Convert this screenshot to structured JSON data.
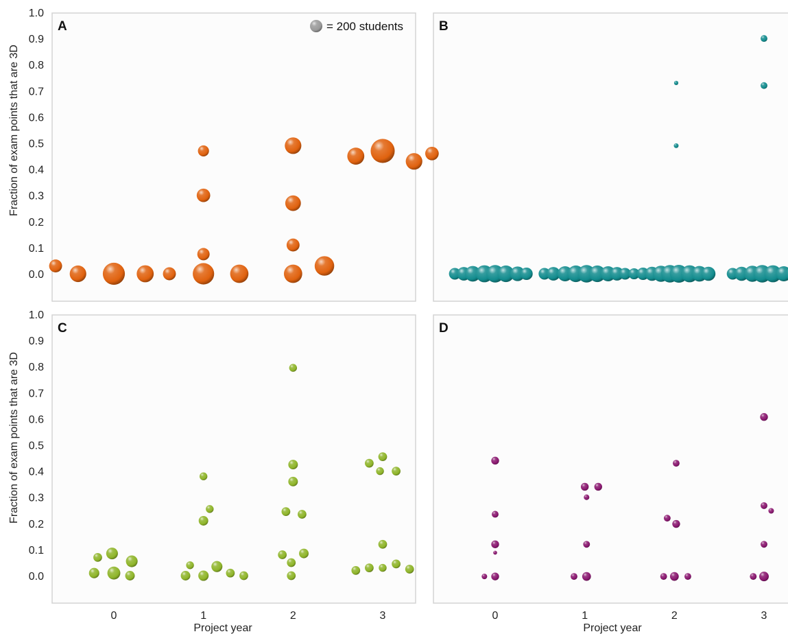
{
  "y_axis_label": "Fraction of exam points that are 3D",
  "x_axis_label": "Project year",
  "x_ticks": [
    "0",
    "1",
    "2",
    "3"
  ],
  "y_ticks": [
    "1.0",
    "0.9",
    "0.8",
    "0.7",
    "0.6",
    "0.5",
    "0.4",
    "0.3",
    "0.2",
    "0.1",
    "0.0"
  ],
  "legend": {
    "text": "= 200 students",
    "students": 200
  },
  "chart_data": [
    {
      "panel": "A",
      "type": "scatter",
      "color": "#e0620f",
      "xlim": [
        -0.7,
        3.7
      ],
      "ylim": [
        -0.1,
        1.0
      ],
      "points": [
        {
          "x": -0.65,
          "y": 0.03,
          "size": 1.1
        },
        {
          "x": -0.4,
          "y": 0.0,
          "size": 1.8
        },
        {
          "x": 0.0,
          "y": 0.0,
          "size": 3.2
        },
        {
          "x": 0.35,
          "y": 0.0,
          "size": 1.9
        },
        {
          "x": 0.62,
          "y": 0.0,
          "size": 1.1
        },
        {
          "x": 1.0,
          "y": 0.0,
          "size": 3.0
        },
        {
          "x": 1.4,
          "y": 0.0,
          "size": 2.2
        },
        {
          "x": 1.0,
          "y": 0.075,
          "size": 1.0
        },
        {
          "x": 1.0,
          "y": 0.3,
          "size": 1.2
        },
        {
          "x": 1.0,
          "y": 0.47,
          "size": 0.8
        },
        {
          "x": 2.0,
          "y": 0.0,
          "size": 2.2
        },
        {
          "x": 2.35,
          "y": 0.03,
          "size": 2.5
        },
        {
          "x": 2.0,
          "y": 0.11,
          "size": 1.1
        },
        {
          "x": 2.0,
          "y": 0.27,
          "size": 1.6
        },
        {
          "x": 2.0,
          "y": 0.49,
          "size": 1.8
        },
        {
          "x": 2.7,
          "y": 0.45,
          "size": 1.9
        },
        {
          "x": 3.0,
          "y": 0.47,
          "size": 3.8
        },
        {
          "x": 3.35,
          "y": 0.43,
          "size": 1.8
        },
        {
          "x": 3.55,
          "y": 0.46,
          "size": 1.2
        }
      ]
    },
    {
      "panel": "B",
      "type": "scatter",
      "color": "#138c8e",
      "xlim": [
        -0.7,
        3.7
      ],
      "ylim": [
        -0.1,
        1.0
      ],
      "points": [
        {
          "x": -0.45,
          "y": 0.0,
          "size": 0.9
        },
        {
          "x": -0.35,
          "y": 0.0,
          "size": 1.2
        },
        {
          "x": -0.25,
          "y": 0.0,
          "size": 1.6
        },
        {
          "x": -0.12,
          "y": 0.0,
          "size": 1.9
        },
        {
          "x": 0.0,
          "y": 0.0,
          "size": 2.0
        },
        {
          "x": 0.12,
          "y": 0.0,
          "size": 1.8
        },
        {
          "x": 0.25,
          "y": 0.0,
          "size": 1.4
        },
        {
          "x": 0.35,
          "y": 0.0,
          "size": 1.0
        },
        {
          "x": 0.55,
          "y": 0.0,
          "size": 0.9
        },
        {
          "x": 0.65,
          "y": 0.0,
          "size": 1.2
        },
        {
          "x": 0.78,
          "y": 0.0,
          "size": 1.5
        },
        {
          "x": 0.9,
          "y": 0.0,
          "size": 1.8
        },
        {
          "x": 1.02,
          "y": 0.0,
          "size": 2.0
        },
        {
          "x": 1.14,
          "y": 0.0,
          "size": 1.8
        },
        {
          "x": 1.26,
          "y": 0.0,
          "size": 1.5
        },
        {
          "x": 1.36,
          "y": 0.0,
          "size": 1.2
        },
        {
          "x": 1.45,
          "y": 0.0,
          "size": 0.9
        },
        {
          "x": 1.55,
          "y": 0.0,
          "size": 0.8
        },
        {
          "x": 1.65,
          "y": 0.0,
          "size": 1.0
        },
        {
          "x": 1.75,
          "y": 0.0,
          "size": 1.3
        },
        {
          "x": 1.85,
          "y": 0.0,
          "size": 1.7
        },
        {
          "x": 1.95,
          "y": 0.0,
          "size": 2.0
        },
        {
          "x": 2.05,
          "y": 0.0,
          "size": 2.1
        },
        {
          "x": 2.17,
          "y": 0.0,
          "size": 1.9
        },
        {
          "x": 2.28,
          "y": 0.0,
          "size": 1.6
        },
        {
          "x": 2.38,
          "y": 0.0,
          "size": 1.3
        },
        {
          "x": 2.65,
          "y": 0.0,
          "size": 0.9
        },
        {
          "x": 2.75,
          "y": 0.0,
          "size": 1.3
        },
        {
          "x": 2.87,
          "y": 0.0,
          "size": 1.7
        },
        {
          "x": 2.98,
          "y": 0.0,
          "size": 2.0
        },
        {
          "x": 3.1,
          "y": 0.0,
          "size": 1.9
        },
        {
          "x": 3.22,
          "y": 0.0,
          "size": 1.5
        },
        {
          "x": 3.32,
          "y": 0.0,
          "size": 1.2
        },
        {
          "x": 3.42,
          "y": 0.0,
          "size": 0.9
        },
        {
          "x": 2.02,
          "y": 0.49,
          "size": 0.15
        },
        {
          "x": 2.02,
          "y": 0.73,
          "size": 0.12
        },
        {
          "x": 3.0,
          "y": 0.72,
          "size": 0.3
        },
        {
          "x": 3.0,
          "y": 0.9,
          "size": 0.3
        }
      ]
    },
    {
      "panel": "C",
      "type": "scatter",
      "color": "#8fb52a",
      "xlim": [
        -0.7,
        3.7
      ],
      "ylim": [
        -0.1,
        1.0
      ],
      "points": [
        {
          "x": -0.22,
          "y": 0.01,
          "size": 0.7
        },
        {
          "x": -0.18,
          "y": 0.07,
          "size": 0.5
        },
        {
          "x": -0.02,
          "y": 0.085,
          "size": 0.9
        },
        {
          "x": 0.0,
          "y": 0.01,
          "size": 1.1
        },
        {
          "x": 0.2,
          "y": 0.055,
          "size": 0.9
        },
        {
          "x": 0.18,
          "y": 0.0,
          "size": 0.6
        },
        {
          "x": 0.8,
          "y": 0.0,
          "size": 0.6
        },
        {
          "x": 0.85,
          "y": 0.04,
          "size": 0.4
        },
        {
          "x": 1.0,
          "y": 0.0,
          "size": 0.7
        },
        {
          "x": 1.15,
          "y": 0.035,
          "size": 0.8
        },
        {
          "x": 1.3,
          "y": 0.01,
          "size": 0.5
        },
        {
          "x": 1.45,
          "y": 0.0,
          "size": 0.5
        },
        {
          "x": 1.0,
          "y": 0.21,
          "size": 0.6
        },
        {
          "x": 1.07,
          "y": 0.255,
          "size": 0.4
        },
        {
          "x": 1.0,
          "y": 0.38,
          "size": 0.4
        },
        {
          "x": 1.88,
          "y": 0.08,
          "size": 0.5
        },
        {
          "x": 1.98,
          "y": 0.05,
          "size": 0.5
        },
        {
          "x": 2.12,
          "y": 0.085,
          "size": 0.6
        },
        {
          "x": 1.98,
          "y": 0.0,
          "size": 0.5
        },
        {
          "x": 1.92,
          "y": 0.245,
          "size": 0.5
        },
        {
          "x": 2.1,
          "y": 0.235,
          "size": 0.5
        },
        {
          "x": 2.0,
          "y": 0.36,
          "size": 0.6
        },
        {
          "x": 2.0,
          "y": 0.425,
          "size": 0.6
        },
        {
          "x": 2.0,
          "y": 0.795,
          "size": 0.4
        },
        {
          "x": 2.7,
          "y": 0.02,
          "size": 0.5
        },
        {
          "x": 2.85,
          "y": 0.03,
          "size": 0.5
        },
        {
          "x": 3.0,
          "y": 0.03,
          "size": 0.4
        },
        {
          "x": 3.15,
          "y": 0.045,
          "size": 0.5
        },
        {
          "x": 3.3,
          "y": 0.025,
          "size": 0.5
        },
        {
          "x": 3.0,
          "y": 0.12,
          "size": 0.5
        },
        {
          "x": 2.85,
          "y": 0.43,
          "size": 0.5
        },
        {
          "x": 2.97,
          "y": 0.4,
          "size": 0.4
        },
        {
          "x": 3.0,
          "y": 0.455,
          "size": 0.5
        },
        {
          "x": 3.15,
          "y": 0.4,
          "size": 0.5
        }
      ]
    },
    {
      "panel": "D",
      "type": "scatter",
      "color": "#8a1870",
      "xlim": [
        -0.7,
        3.7
      ],
      "ylim": [
        -0.1,
        1.0
      ],
      "points": [
        {
          "x": -0.12,
          "y": -0.003,
          "size": 0.2
        },
        {
          "x": 0.0,
          "y": -0.003,
          "size": 0.4
        },
        {
          "x": 0.0,
          "y": 0.088,
          "size": 0.1
        },
        {
          "x": 0.0,
          "y": 0.12,
          "size": 0.4
        },
        {
          "x": 0.0,
          "y": 0.235,
          "size": 0.3
        },
        {
          "x": 0.0,
          "y": 0.44,
          "size": 0.4
        },
        {
          "x": 0.88,
          "y": -0.003,
          "size": 0.3
        },
        {
          "x": 1.02,
          "y": -0.003,
          "size": 0.5
        },
        {
          "x": 1.02,
          "y": 0.12,
          "size": 0.3
        },
        {
          "x": 1.02,
          "y": 0.3,
          "size": 0.2
        },
        {
          "x": 1.0,
          "y": 0.34,
          "size": 0.4
        },
        {
          "x": 1.15,
          "y": 0.34,
          "size": 0.4
        },
        {
          "x": 1.88,
          "y": -0.003,
          "size": 0.3
        },
        {
          "x": 2.0,
          "y": -0.003,
          "size": 0.5
        },
        {
          "x": 2.15,
          "y": -0.003,
          "size": 0.3
        },
        {
          "x": 1.92,
          "y": 0.22,
          "size": 0.3
        },
        {
          "x": 2.02,
          "y": 0.198,
          "size": 0.4
        },
        {
          "x": 2.02,
          "y": 0.43,
          "size": 0.3
        },
        {
          "x": 2.88,
          "y": -0.003,
          "size": 0.3
        },
        {
          "x": 3.0,
          "y": -0.003,
          "size": 0.6
        },
        {
          "x": 3.0,
          "y": 0.12,
          "size": 0.3
        },
        {
          "x": 3.0,
          "y": 0.268,
          "size": 0.3
        },
        {
          "x": 3.08,
          "y": 0.248,
          "size": 0.2
        },
        {
          "x": 3.0,
          "y": 0.607,
          "size": 0.4
        }
      ]
    }
  ]
}
